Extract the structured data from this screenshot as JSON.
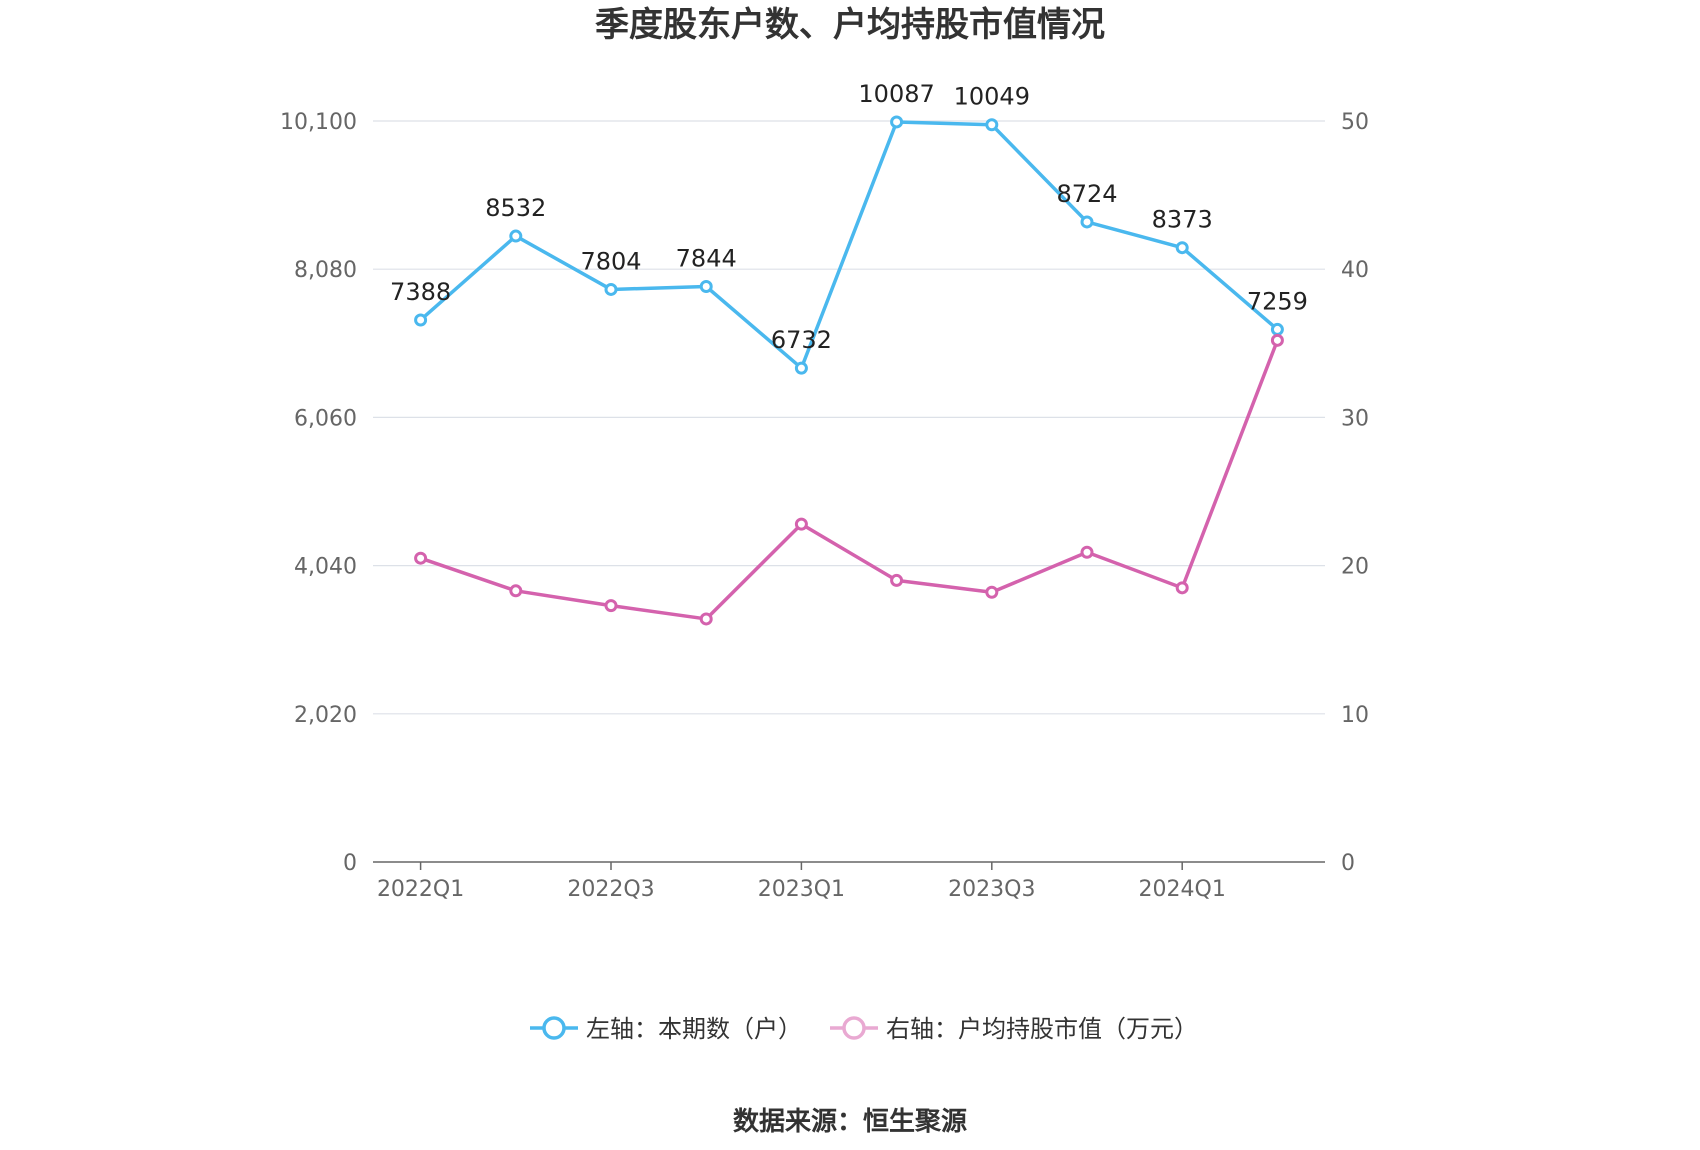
{
  "chart_data": {
    "type": "line",
    "title": "季度股东户数、户均持股市值情况",
    "categories": [
      "2022Q1",
      "2022Q2",
      "2022Q3",
      "2022Q4",
      "2023Q1",
      "2023Q2",
      "2023Q3",
      "2023Q4",
      "2024Q1",
      "2024Q2"
    ],
    "x_tick_labels": [
      "2022Q1",
      "2022Q3",
      "2023Q1",
      "2023Q3",
      "2024Q1"
    ],
    "y_left": {
      "min": 0,
      "max": 10100,
      "ticks": [
        "0",
        "2,020",
        "4,040",
        "6,060",
        "8,080",
        "10,100"
      ]
    },
    "y_right": {
      "min": 0,
      "max": 50,
      "ticks": [
        "0",
        "10",
        "20",
        "30",
        "40",
        "50"
      ]
    },
    "series": [
      {
        "name": "左轴：本期数（户）",
        "axis": "left",
        "color": "#4ab8ee",
        "values": [
          7388,
          8532,
          7804,
          7844,
          6732,
          10087,
          10049,
          8724,
          8373,
          7259
        ],
        "labels": [
          "7388",
          "8532",
          "7804",
          "7844",
          "6732",
          "10087",
          "10049",
          "8724",
          "8373",
          "7259"
        ]
      },
      {
        "name": "右轴：户均持股市值（万元）",
        "axis": "right",
        "color": "#d462ad",
        "values": [
          20.5,
          18.3,
          17.3,
          16.4,
          22.8,
          19.0,
          18.2,
          20.9,
          18.5,
          35.2
        ]
      }
    ],
    "grid": true,
    "legend_position": "bottom"
  },
  "source_text": "数据来源：恒生聚源"
}
